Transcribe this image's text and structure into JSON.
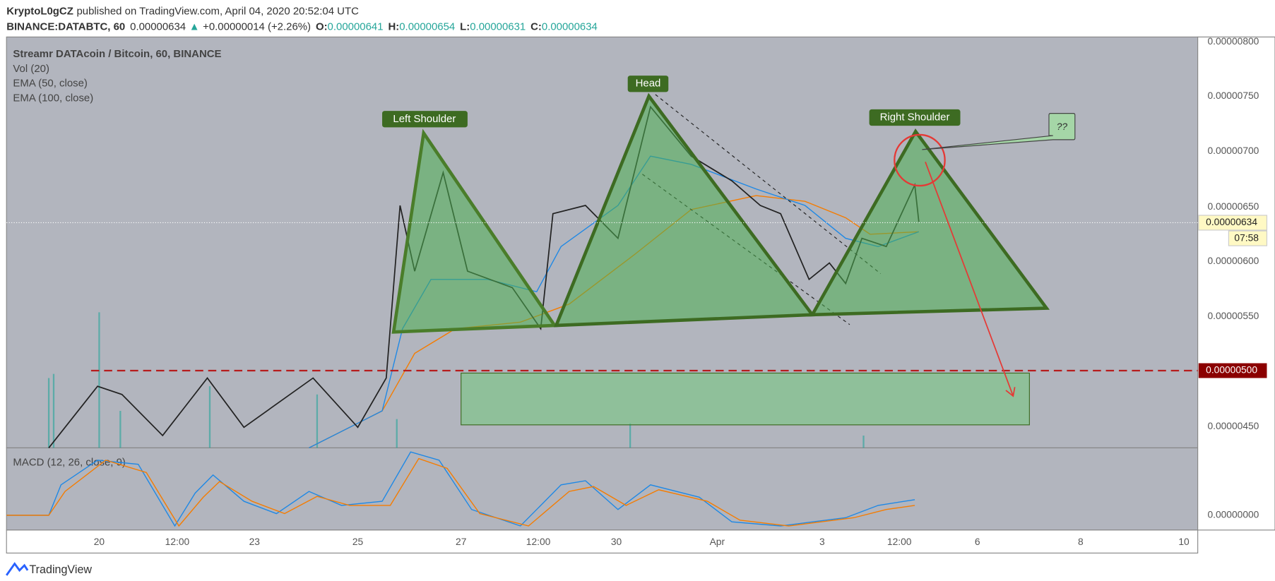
{
  "header": {
    "author": "KryptoL0gCZ",
    "published": "published on TradingView.com, April 04, 2020 20:52:04 UTC",
    "symbol": "BINANCE:DATABTC, 60",
    "last": "0.00000634",
    "arrow": "▲",
    "change": "+0.00000014 (+2.26%)",
    "ohlc": [
      {
        "label": "O:",
        "value": "0.00000641"
      },
      {
        "label": "H:",
        "value": "0.00000654"
      },
      {
        "label": "L:",
        "value": "0.00000631"
      },
      {
        "label": "C:",
        "value": "0.00000634"
      }
    ]
  },
  "legend": [
    "Streamr DATAcoin / Bitcoin, 60, BINANCE",
    "Vol (20)",
    "EMA (50, close)",
    "EMA (100, close)"
  ],
  "price_axis": [
    "0.00000800",
    "0.00000750",
    "0.00000700",
    "0.00000650",
    "0.00000600",
    "0.00000550",
    "0.00000450"
  ],
  "price_markers": {
    "level": "0.00000500",
    "current": "0.00000634",
    "countdown": "07:58"
  },
  "macd": {
    "label": "MACD (12, 26, close, 9)",
    "tick": "0.00000000"
  },
  "time_axis": [
    "20",
    "12:00",
    "23",
    "25",
    "27",
    "12:00",
    "30",
    "Apr",
    "3",
    "12:00",
    "6",
    "8",
    "10"
  ],
  "annotations": {
    "left": "Left Shoulder",
    "head": "Head",
    "right": "Right Shoulder",
    "callout": "??"
  },
  "footer": "TradingView"
}
